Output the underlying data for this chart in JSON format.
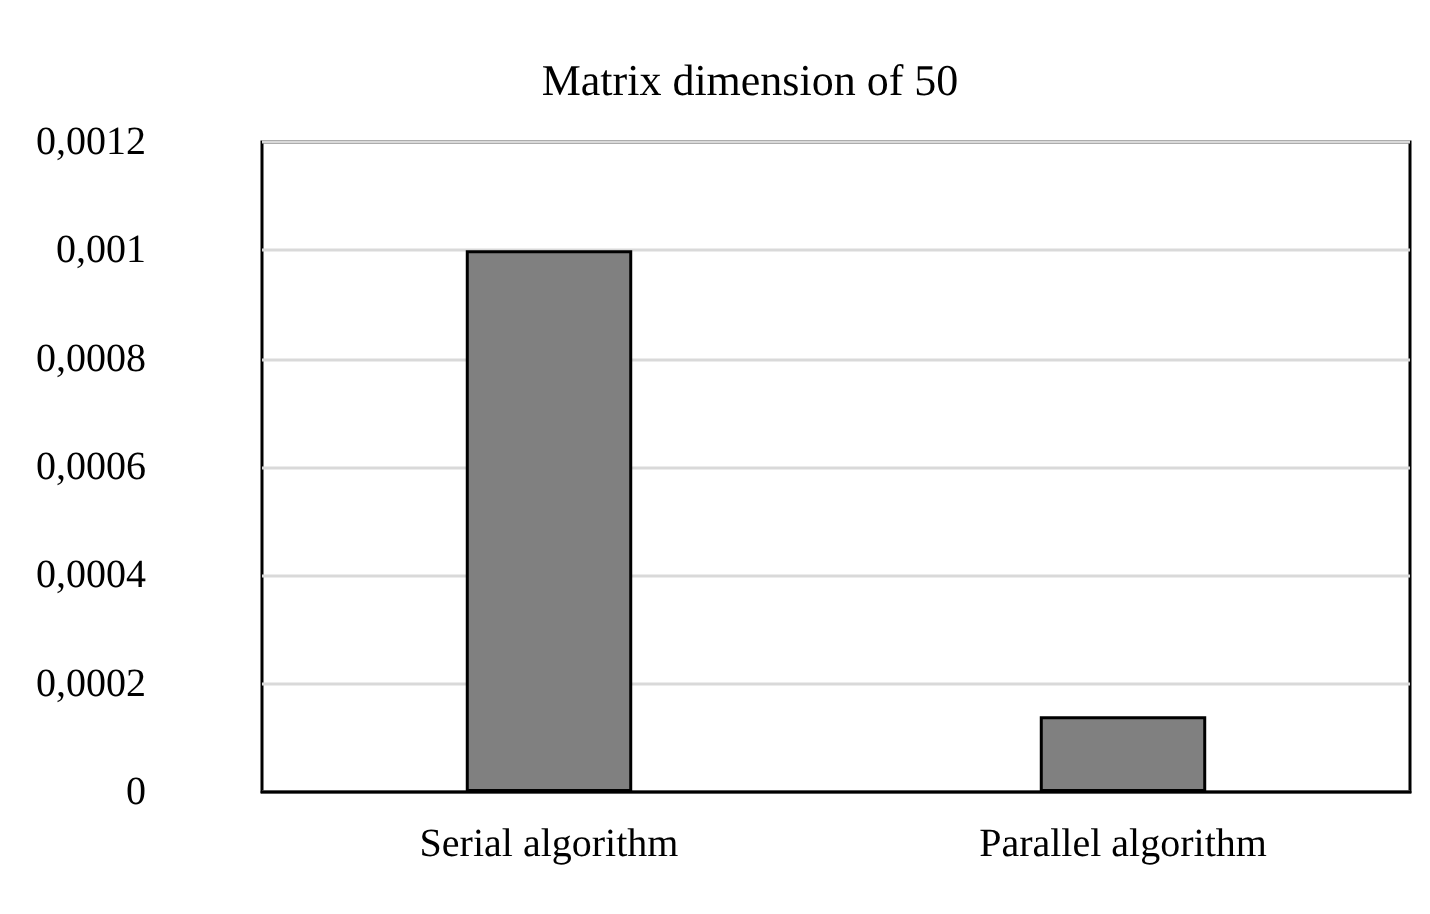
{
  "chart_data": {
    "type": "bar",
    "title": "Matrix dimension of 50",
    "categories": [
      "Serial algorithm",
      "Parallel algorithm"
    ],
    "values": [
      0.001,
      0.00014
    ],
    "color": "#808080",
    "ylim": [
      0,
      0.0012
    ],
    "yticks": [
      0,
      {
        "value": 0.0002,
        "label": "0,0002"
      },
      {
        "value": 0.0004,
        "label": "0,0004"
      },
      {
        "value": 0.0006,
        "label": "0,0006"
      },
      {
        "value": 0.0008,
        "label": "0,0008"
      },
      {
        "value": 0.001,
        "label": "0,001"
      },
      {
        "value": 0.0012,
        "label": "0,0012"
      }
    ],
    "grid": "y"
  }
}
